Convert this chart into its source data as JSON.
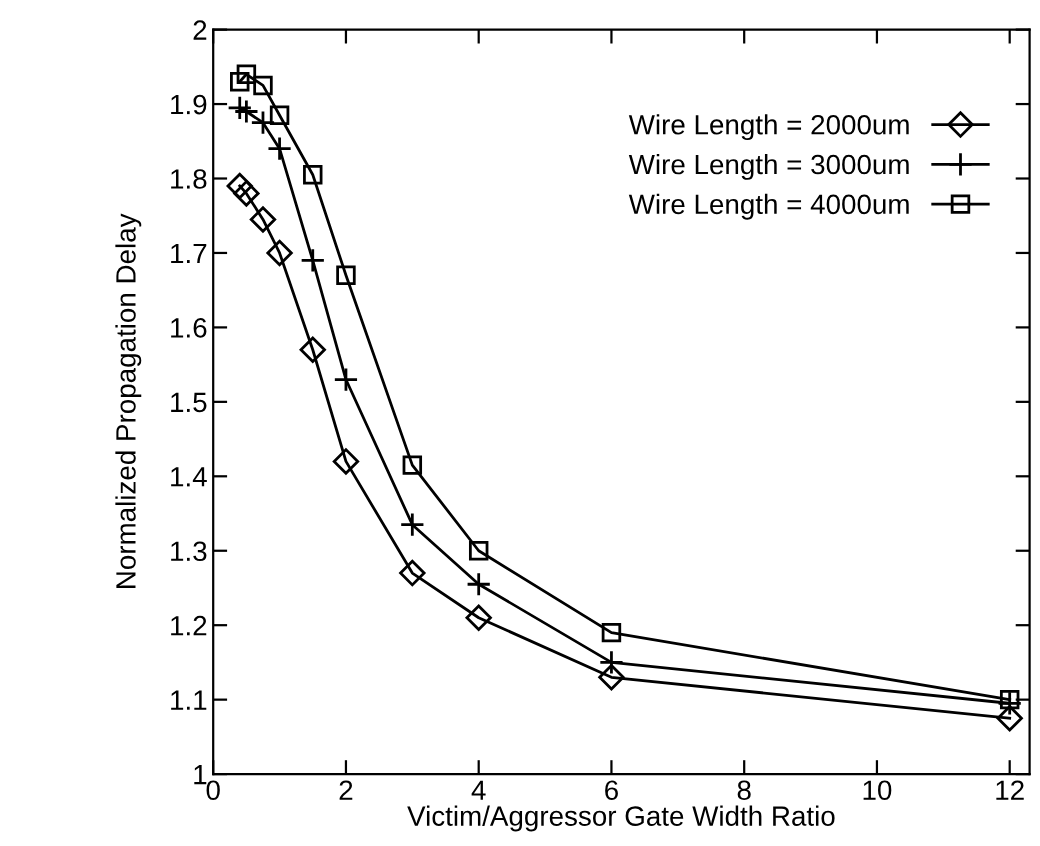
{
  "chart_data": {
    "type": "line",
    "xlabel": "Victim/Aggressor Gate Width Ratio",
    "ylabel": "Normalized Propagation Delay",
    "x": [
      0.4,
      0.5,
      0.75,
      1,
      1.5,
      2,
      3,
      4,
      6,
      12
    ],
    "series": [
      {
        "name": "Wire Length = 2000um",
        "color": "#000000",
        "marker": "diamond",
        "values": [
          1.79,
          1.78,
          1.745,
          1.7,
          1.57,
          1.42,
          1.27,
          1.21,
          1.13,
          1.075
        ]
      },
      {
        "name": "Wire Length = 3000um",
        "color": "#000000",
        "marker": "cross",
        "values": [
          1.895,
          1.89,
          1.875,
          1.84,
          1.69,
          1.53,
          1.335,
          1.255,
          1.15,
          1.095
        ]
      },
      {
        "name": "Wire Length = 4000um",
        "color": "#000000",
        "marker": "square",
        "values": [
          1.93,
          1.94,
          1.925,
          1.885,
          1.805,
          1.67,
          1.415,
          1.3,
          1.19,
          1.1
        ]
      }
    ],
    "xlim": [
      0,
      12.3
    ],
    "xticks": [
      0,
      2,
      4,
      6,
      8,
      10,
      12
    ],
    "ylim": [
      1,
      2
    ],
    "yticks": [
      1,
      1.1,
      1.2,
      1.3,
      1.4,
      1.5,
      1.6,
      1.7,
      1.8,
      1.9,
      2
    ],
    "grid": false,
    "legend": "top right",
    "line_style": "solid"
  }
}
